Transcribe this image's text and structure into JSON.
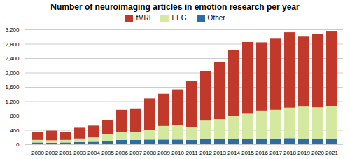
{
  "chart_data": {
    "type": "bar",
    "title": "Number of neuroimaging articles in emotion research per year",
    "categories": [
      "2000",
      "2002",
      "2001",
      "2003",
      "2004",
      "2005",
      "2006",
      "2007",
      "2008",
      "2009",
      "2010",
      "2011",
      "2012",
      "2013",
      "2014",
      "2015",
      "2016",
      "2017",
      "2018",
      "2019",
      "2020",
      "2021"
    ],
    "series": [
      {
        "name": "fMRI",
        "color": "#c0392b",
        "values": [
          230,
          270,
          230,
          300,
          330,
          400,
          620,
          660,
          870,
          900,
          1000,
          1280,
          1380,
          1600,
          1820,
          2000,
          1900,
          2000,
          2100,
          1950,
          2050,
          2100
        ]
      },
      {
        "name": "EEG",
        "color": "#d5e8a0",
        "values": [
          70,
          70,
          70,
          100,
          120,
          200,
          220,
          220,
          280,
          380,
          400,
          360,
          500,
          550,
          650,
          700,
          780,
          800,
          850,
          900,
          880,
          900
        ]
      },
      {
        "name": "Other",
        "color": "#2e6da4",
        "values": [
          50,
          40,
          50,
          60,
          70,
          80,
          120,
          120,
          130,
          130,
          130,
          120,
          160,
          150,
          150,
          150,
          160,
          160,
          170,
          150,
          150,
          160
        ]
      }
    ],
    "stacked": true,
    "ylim": [
      0,
      3200
    ],
    "yticks": [
      0,
      400,
      800,
      1200,
      1600,
      2000,
      2400,
      2800,
      3200
    ],
    "grid": true,
    "legend": "top"
  }
}
